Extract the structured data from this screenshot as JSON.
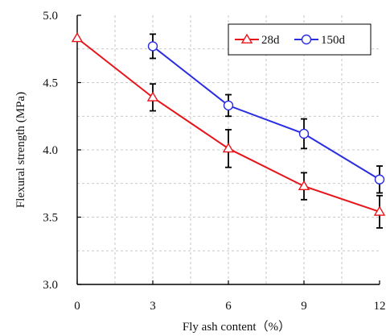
{
  "chart_data": {
    "type": "line",
    "xlabel": "Fly ash content（%）",
    "ylabel": "Flexural strength (MPa)",
    "x_ticks": [
      "0",
      "3",
      "6",
      "9",
      "12"
    ],
    "y_ticks": [
      "3.0",
      "3.5",
      "4.0",
      "4.5",
      "5.0"
    ],
    "xlim": [
      0,
      12
    ],
    "ylim": [
      3.0,
      5.0
    ],
    "grid": true,
    "legend_position": "top-right",
    "series": [
      {
        "name": "28d",
        "color": "#e8141a",
        "marker": "triangle",
        "x": [
          0,
          3,
          6,
          9,
          12
        ],
        "values": [
          4.83,
          4.39,
          4.01,
          3.73,
          3.54
        ],
        "errors": [
          0,
          0.1,
          0.14,
          0.1,
          0.12
        ]
      },
      {
        "name": "150d",
        "color": "#2a2ee0",
        "marker": "circle",
        "x": [
          3,
          6,
          9,
          12
        ],
        "values": [
          4.77,
          4.33,
          4.12,
          3.78
        ],
        "errors": [
          0.09,
          0.08,
          0.11,
          0.1
        ]
      }
    ]
  }
}
